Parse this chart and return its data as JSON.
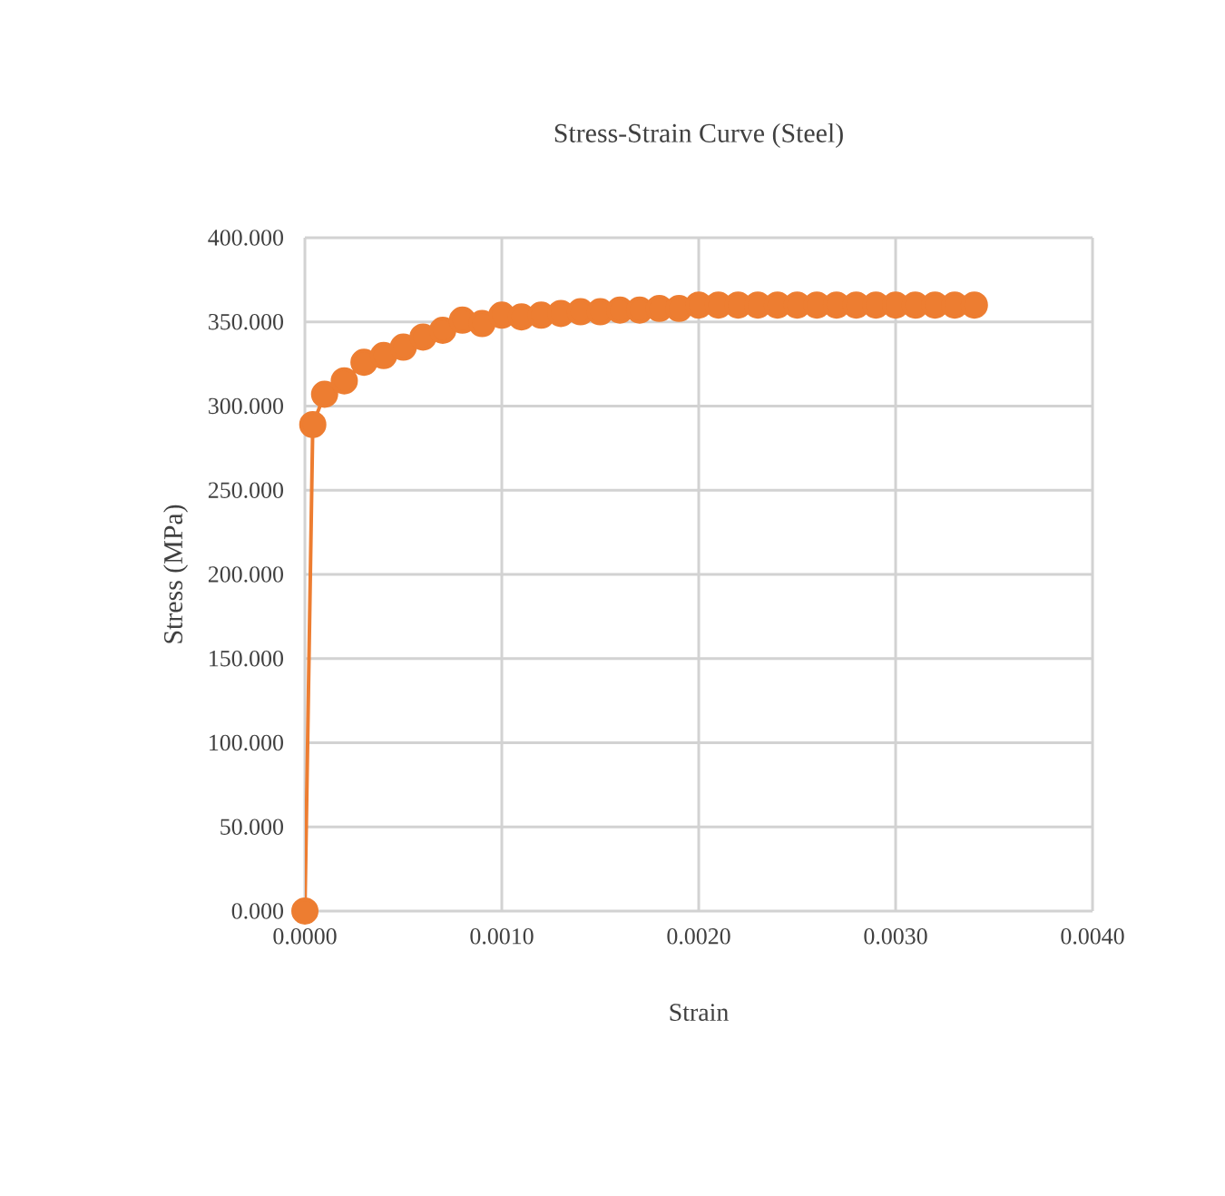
{
  "chart_data": {
    "type": "line",
    "title": "Stress-Strain Curve (Steel)",
    "xlabel": "Strain",
    "ylabel": "Stress (MPa)",
    "x": [
      0,
      4e-05,
      0.0001,
      0.0002,
      0.0003,
      0.0004,
      0.0005,
      0.0006,
      0.0007,
      0.0008,
      0.0009,
      0.001,
      0.0011,
      0.0012,
      0.0013,
      0.0014,
      0.0015,
      0.0016,
      0.0017,
      0.0018,
      0.0019,
      0.002,
      0.0021,
      0.0022,
      0.0023,
      0.0024,
      0.0025,
      0.0026,
      0.0027,
      0.0028,
      0.0029,
      0.003,
      0.0031,
      0.0032,
      0.0033,
      0.0034
    ],
    "values": [
      0,
      289,
      307,
      315,
      326,
      330,
      335,
      341,
      345,
      351,
      349,
      354,
      353,
      354,
      355,
      356,
      356,
      357,
      357,
      358,
      358,
      360,
      360,
      360,
      360,
      360,
      360,
      360,
      360,
      360,
      360,
      360,
      360,
      360,
      360,
      360
    ],
    "color": "#ed7d31",
    "marker": "circle",
    "line_style": "solid",
    "grid": true,
    "xlim": [
      0,
      0.004
    ],
    "ylim": [
      0,
      400
    ],
    "xticks": [
      {
        "value": 0,
        "label": "0.0000"
      },
      {
        "value": 0.001,
        "label": "0.0010"
      },
      {
        "value": 0.002,
        "label": "0.0020"
      },
      {
        "value": 0.003,
        "label": "0.0030"
      },
      {
        "value": 0.004,
        "label": "0.0040"
      }
    ],
    "yticks": [
      {
        "value": 0,
        "label": "0.000"
      },
      {
        "value": 50,
        "label": "50.000"
      },
      {
        "value": 100,
        "label": "100.000"
      },
      {
        "value": 150,
        "label": "150.000"
      },
      {
        "value": 200,
        "label": "200.000"
      },
      {
        "value": 250,
        "label": "250.000"
      },
      {
        "value": 300,
        "label": "300.000"
      },
      {
        "value": 350,
        "label": "350.000"
      },
      {
        "value": 400,
        "label": "400.000"
      }
    ]
  }
}
